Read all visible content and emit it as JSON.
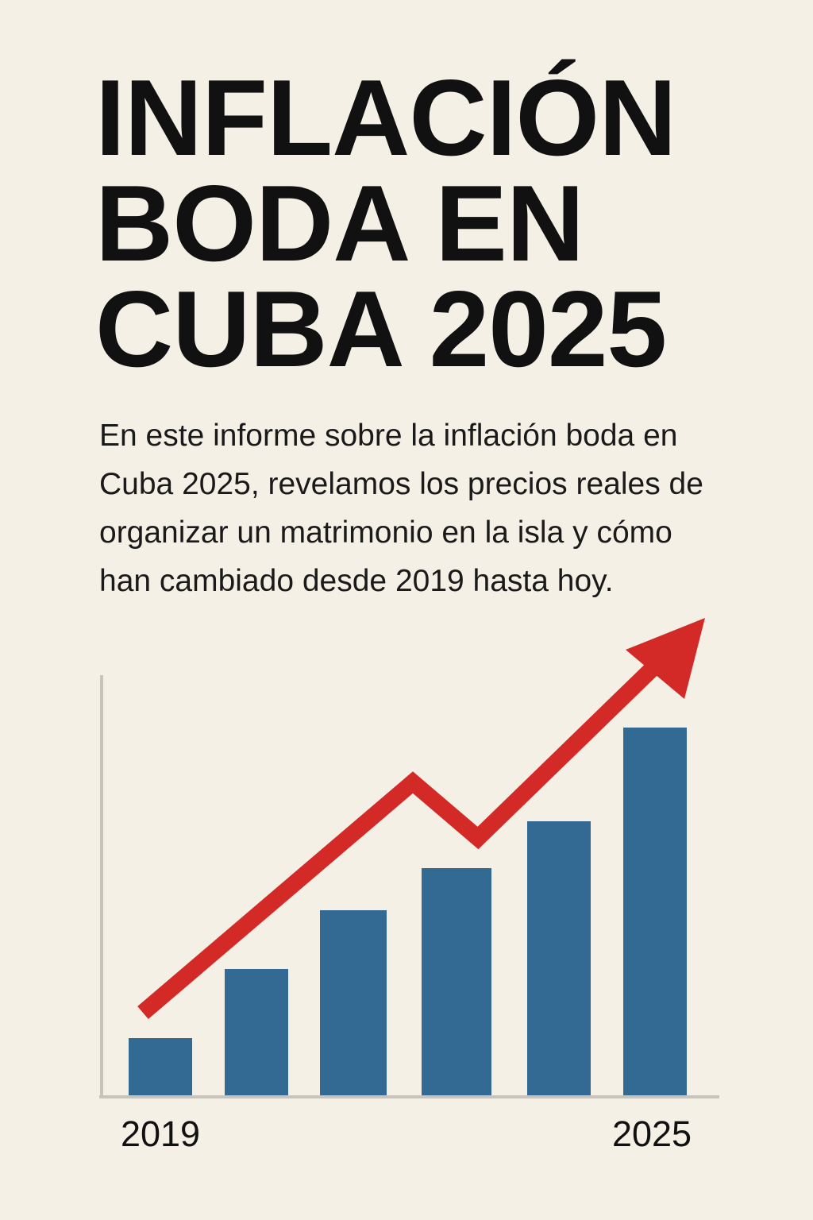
{
  "title_lines": [
    "INFLACIÓN",
    "BODA EN",
    "CUBA 2025"
  ],
  "description": "En este informe sobre la inflación boda en Cuba 2025, revelamos los precios reales de organizar un matrimonio en la isla y cómo han cambiado desde 2019 hasta hoy.",
  "colors": {
    "background": "#f5f0e6",
    "bars": "#336a93",
    "trend_arrow": "#d42a27",
    "axis": "#c8c4bc",
    "text": "#111111"
  },
  "chart_data": {
    "type": "bar",
    "title": "",
    "xlabel": "",
    "ylabel": "",
    "tick_labels": [
      "2019",
      "",
      "",
      "",
      "",
      "2025"
    ],
    "values": [
      72,
      159,
      233,
      286,
      345,
      463
    ],
    "ylim": [
      0,
      530
    ],
    "grid": false,
    "y_axis_ticks": false,
    "overlay": {
      "type": "trend-arrow",
      "direction": "up",
      "values": [
        100,
        390,
        322,
        570
      ]
    }
  }
}
